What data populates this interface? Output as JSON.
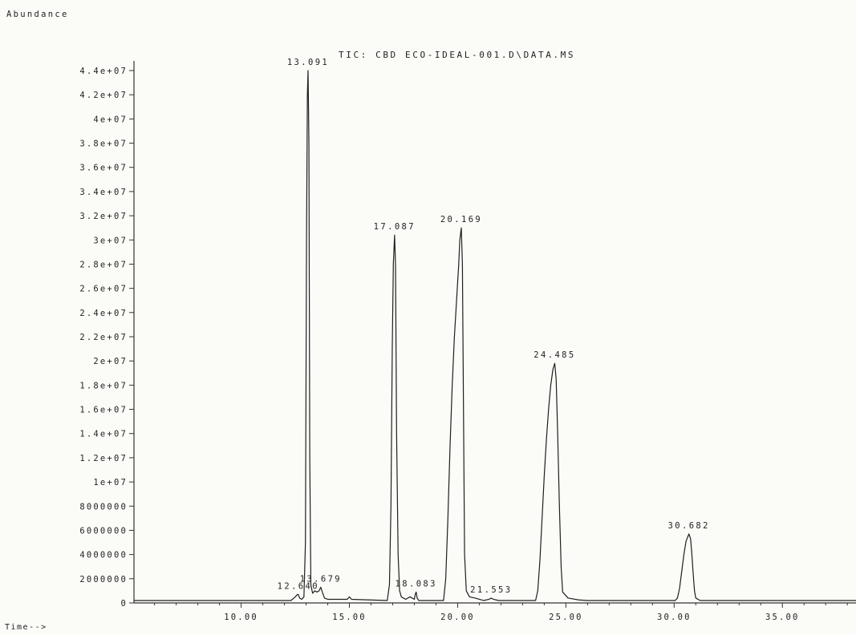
{
  "chart_data": {
    "type": "line",
    "title": "TIC: CBD ECO-IDEAL-001.D\\DATA.MS",
    "ylabel": "Abundance",
    "xlabel": "Time-->",
    "xlim": [
      5.05,
      38.4
    ],
    "ylim": [
      0,
      45000000
    ],
    "x_ticks": [
      10,
      15,
      20,
      25,
      30,
      35
    ],
    "x_tick_labels": [
      "10.00",
      "15.00",
      "20.00",
      "25.00",
      "30.00",
      "35.00"
    ],
    "y_ticks": [
      0,
      2000000,
      4000000,
      6000000,
      8000000,
      10000000,
      12000000,
      14000000,
      16000000,
      18000000,
      20000000,
      22000000,
      24000000,
      26000000,
      28000000,
      30000000,
      32000000,
      34000000,
      36000000,
      38000000,
      40000000,
      42000000,
      44000000
    ],
    "y_tick_labels": [
      "0",
      "2000000",
      "4000000",
      "6000000",
      "8000000",
      "1e+07",
      "1.2e+07",
      "1.4e+07",
      "1.6e+07",
      "1.8e+07",
      "2e+07",
      "2.2e+07",
      "2.4e+07",
      "2.6e+07",
      "2.8e+07",
      "3e+07",
      "3.2e+07",
      "3.4e+07",
      "3.6e+07",
      "3.8e+07",
      "4e+07",
      "4.2e+07",
      "4.4e+07"
    ],
    "grid": false,
    "peaks": [
      {
        "label": "12.640",
        "rt": 12.64,
        "height": 700000
      },
      {
        "label": "13.091",
        "rt": 13.091,
        "height": 44000000
      },
      {
        "label": "13.679",
        "rt": 13.679,
        "height": 1300000
      },
      {
        "label": "17.087",
        "rt": 17.087,
        "height": 30400000
      },
      {
        "label": "18.083",
        "rt": 18.083,
        "height": 900000
      },
      {
        "label": "20.169",
        "rt": 20.169,
        "height": 31000000
      },
      {
        "label": "21.553",
        "rt": 21.553,
        "height": 400000
      },
      {
        "label": "24.485",
        "rt": 24.485,
        "height": 19800000
      },
      {
        "label": "30.682",
        "rt": 30.682,
        "height": 5700000
      }
    ],
    "series": [
      {
        "x": [
          5.05,
          12.3,
          12.5,
          12.6,
          12.64,
          12.7,
          12.8,
          12.9,
          12.97,
          13.02,
          13.06,
          13.091,
          13.13,
          13.17,
          13.22,
          13.3,
          13.4,
          13.5,
          13.6,
          13.679,
          13.75,
          13.85,
          14.0,
          14.9,
          15.0,
          15.1,
          16.75,
          16.85,
          16.92,
          16.98,
          17.03,
          17.087,
          17.13,
          17.18,
          17.25,
          17.32,
          17.4,
          17.6,
          17.8,
          18.0,
          18.04,
          18.083,
          18.13,
          18.2,
          19.35,
          19.45,
          19.55,
          19.65,
          19.75,
          19.85,
          19.95,
          20.05,
          20.1,
          20.169,
          20.22,
          20.27,
          20.32,
          20.4,
          20.55,
          20.8,
          21.2,
          21.45,
          21.553,
          21.65,
          21.9,
          23.6,
          23.7,
          23.8,
          23.9,
          24.0,
          24.1,
          24.2,
          24.3,
          24.4,
          24.485,
          24.55,
          24.62,
          24.7,
          24.78,
          24.85,
          25.1,
          25.6,
          26.0,
          30.05,
          30.15,
          30.25,
          30.35,
          30.45,
          30.55,
          30.682,
          30.76,
          30.82,
          30.88,
          30.94,
          31.0,
          31.2,
          38.4
        ],
        "y": [
          200000,
          200000,
          500000,
          700000,
          700000,
          400000,
          300000,
          500000,
          5000000,
          30000000,
          42000000,
          44000000,
          38000000,
          12000000,
          1500000,
          800000,
          1000000,
          900000,
          1000000,
          1300000,
          900000,
          400000,
          300000,
          300000,
          500000,
          300000,
          200000,
          1500000,
          8000000,
          21000000,
          28000000,
          30400000,
          28000000,
          14000000,
          4000000,
          1000000,
          500000,
          300000,
          500000,
          300000,
          700000,
          900000,
          400000,
          200000,
          200000,
          2000000,
          7000000,
          13000000,
          18000000,
          22000000,
          25000000,
          28000000,
          30000000,
          31000000,
          28000000,
          16000000,
          4000000,
          1000000,
          500000,
          400000,
          200000,
          300000,
          400000,
          300000,
          200000,
          200000,
          1000000,
          3500000,
          7000000,
          10500000,
          13500000,
          16000000,
          18000000,
          19300000,
          19800000,
          18500000,
          14000000,
          8000000,
          3000000,
          900000,
          400000,
          250000,
          200000,
          200000,
          400000,
          1200000,
          2600000,
          4000000,
          5100000,
          5700000,
          5300000,
          4000000,
          2400000,
          1000000,
          400000,
          200000,
          200000
        ]
      }
    ]
  }
}
